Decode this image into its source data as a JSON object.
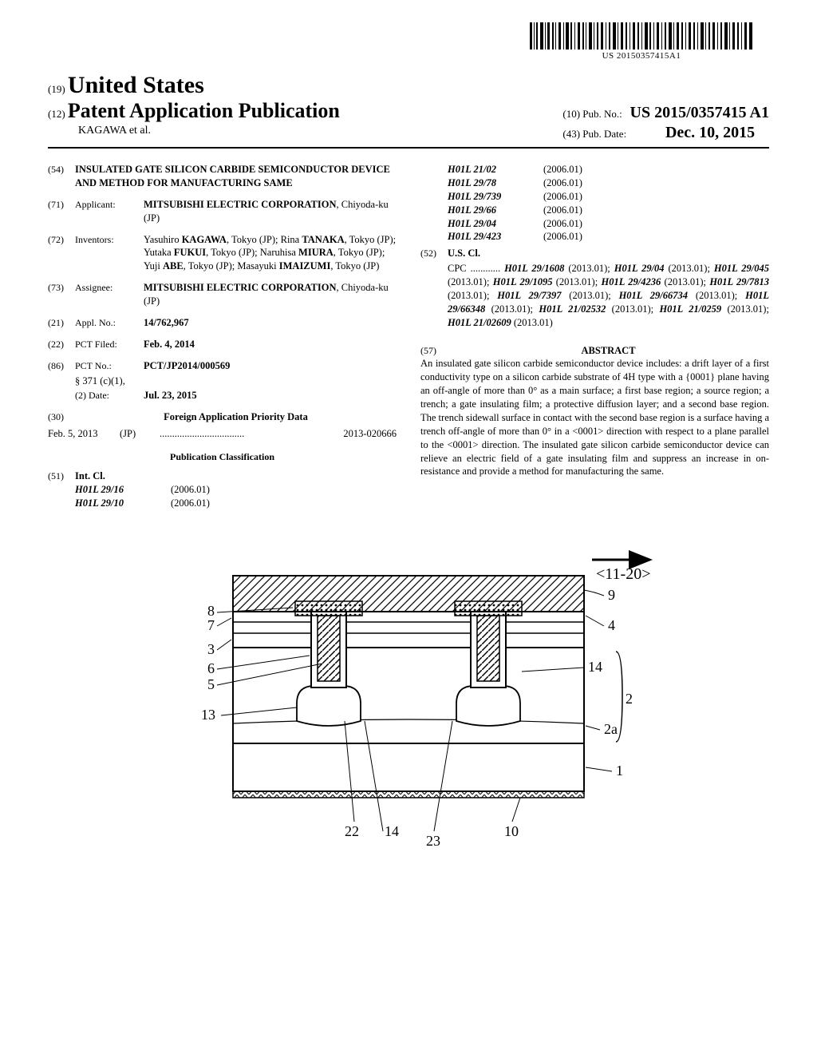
{
  "barcode_number": "US 20150357415A1",
  "header": {
    "country_code": "(19)",
    "country": "United States",
    "doc_code": "(12)",
    "doc_type": "Patent Application Publication",
    "author": "KAGAWA et al.",
    "pubno_code": "(10)",
    "pubno_label": "Pub. No.:",
    "pubno": "US 2015/0357415 A1",
    "pubdate_code": "(43)",
    "pubdate_label": "Pub. Date:",
    "pubdate": "Dec. 10, 2015"
  },
  "left": {
    "title_code": "(54)",
    "title": "INSULATED GATE SILICON CARBIDE SEMICONDUCTOR DEVICE AND METHOD FOR MANUFACTURING SAME",
    "applicant_code": "(71)",
    "applicant_label": "Applicant:",
    "applicant": "MITSUBISHI ELECTRIC CORPORATION",
    "applicant_loc": ", Chiyoda-ku (JP)",
    "inventors_code": "(72)",
    "inventors_label": "Inventors:",
    "inventors": "Yasuhiro KAGAWA, Tokyo (JP); Rina TANAKA, Tokyo (JP); Yutaka FUKUI, Tokyo (JP); Naruhisa MIURA, Tokyo (JP); Yuji ABE, Tokyo (JP); Masayuki IMAIZUMI, Tokyo (JP)",
    "assignee_code": "(73)",
    "assignee_label": "Assignee:",
    "assignee": "MITSUBISHI ELECTRIC CORPORATION",
    "assignee_loc": ", Chiyoda-ku (JP)",
    "applno_code": "(21)",
    "applno_label": "Appl. No.:",
    "applno": "14/762,967",
    "pctfiled_code": "(22)",
    "pctfiled_label": "PCT Filed:",
    "pctfiled": "Feb. 4, 2014",
    "pctno_code": "(86)",
    "pctno_label": "PCT No.:",
    "pctno": "PCT/JP2014/000569",
    "s371_label": "§ 371 (c)(1),",
    "s371_date_label": "(2) Date:",
    "s371_date": "Jul. 23, 2015",
    "priority_code": "(30)",
    "priority_head": "Foreign Application Priority Data",
    "priority_date": "Feb. 5, 2013",
    "priority_cc": "(JP)",
    "priority_num": "2013-020666",
    "pubclass_head": "Publication Classification",
    "intcl_code": "(51)",
    "intcl_label": "Int. Cl.",
    "intcl": [
      {
        "code": "H01L 29/16",
        "ver": "(2006.01)"
      },
      {
        "code": "H01L 29/10",
        "ver": "(2006.01)"
      }
    ]
  },
  "right": {
    "intcl_cont": [
      {
        "code": "H01L 21/02",
        "ver": "(2006.01)"
      },
      {
        "code": "H01L 29/78",
        "ver": "(2006.01)"
      },
      {
        "code": "H01L 29/739",
        "ver": "(2006.01)"
      },
      {
        "code": "H01L 29/66",
        "ver": "(2006.01)"
      },
      {
        "code": "H01L 29/04",
        "ver": "(2006.01)"
      },
      {
        "code": "H01L 29/423",
        "ver": "(2006.01)"
      }
    ],
    "uscl_code": "(52)",
    "uscl_label": "U.S. Cl.",
    "cpc_label": "CPC ............",
    "cpc": "H01L 29/1608 (2013.01); H01L 29/04 (2013.01); H01L 29/045 (2013.01); H01L 29/1095 (2013.01); H01L 29/4236 (2013.01); H01L 29/7813 (2013.01); H01L 29/7397 (2013.01); H01L 29/66734 (2013.01); H01L 29/66348 (2013.01); H01L 21/02532 (2013.01); H01L 21/0259 (2013.01); H01L 21/02609 (2013.01)",
    "abstract_code": "(57)",
    "abstract_head": "ABSTRACT",
    "abstract": "An insulated gate silicon carbide semiconductor device includes: a drift layer of a first conductivity type on a silicon carbide substrate of 4H type with a {0001} plane having an off-angle of more than 0° as a main surface; a first base region; a source region; a trench; a gate insulating film; a protective diffusion layer; and a second base region. The trench sidewall surface in contact with the second base region is a surface having a trench off-angle of more than 0° in a <0001> direction with respect to a plane parallel to the <0001> direction. The insulated gate silicon carbide semiconductor device can relieve an electric field of a gate insulating film and suppress an increase in on-resistance and provide a method for manufacturing the same."
  },
  "figure": {
    "direction_label": "<11-20>",
    "labels_left": [
      "8",
      "7",
      "3",
      "6",
      "5",
      "13"
    ],
    "labels_right_top": "9",
    "labels_right": [
      "4",
      "14",
      "2",
      "2a",
      "1"
    ],
    "labels_bottom": [
      "22",
      "14",
      "23",
      "10"
    ],
    "stroke": "#000000",
    "fill_bg": "#ffffff"
  }
}
